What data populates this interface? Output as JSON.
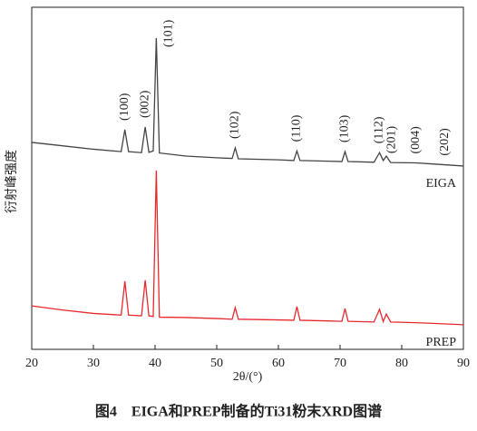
{
  "chart_data": {
    "type": "line",
    "y_label": "衍射峰强度",
    "x_label": "2θ/(°)",
    "caption": "图4　EIGA和PREP制备的Ti31粉末XRD图谱",
    "xlim": [
      20,
      90
    ],
    "xticks": [
      20,
      30,
      40,
      50,
      60,
      70,
      80,
      90
    ],
    "ylim": [
      0,
      100
    ],
    "series": [
      {
        "name": "EIGA",
        "color": "#444444",
        "x": [
          20,
          25,
          30,
          34.5,
          35.1,
          35.7,
          37.8,
          38.4,
          39.0,
          39.7,
          40.2,
          40.7,
          45,
          50,
          52.5,
          53.0,
          53.5,
          60,
          62.5,
          63.0,
          63.5,
          68,
          70.3,
          70.8,
          71.3,
          75.5,
          76.4,
          77.0,
          77.5,
          78.2,
          82.3,
          85,
          90
        ],
        "values": [
          60.5,
          59.5,
          58.5,
          57.8,
          64.2,
          57.8,
          57.5,
          65,
          57.6,
          58,
          91,
          57.4,
          56.5,
          56,
          55.8,
          58.9,
          55.7,
          55.4,
          55.2,
          58,
          55.2,
          55,
          54.9,
          57.8,
          54.9,
          54.7,
          57.5,
          55.2,
          56.5,
          54.6,
          54.5,
          54.2,
          53.6
        ]
      },
      {
        "name": "PREP",
        "color": "#e8292e",
        "x": [
          20,
          25,
          30,
          34.5,
          35.1,
          35.7,
          37.8,
          38.4,
          39.0,
          39.7,
          40.2,
          40.7,
          45,
          50,
          52.5,
          53.0,
          53.5,
          60,
          62.5,
          63.0,
          63.5,
          68,
          70.3,
          70.8,
          71.3,
          75.5,
          76.4,
          77.0,
          77.5,
          78.2,
          82.3,
          85,
          90
        ],
        "values": [
          12.7,
          11.5,
          10.5,
          10,
          19.9,
          10,
          9.8,
          20.2,
          9.8,
          9.6,
          52.3,
          9.4,
          9.3,
          9,
          8.8,
          12.2,
          8.8,
          8.6,
          8.5,
          12.5,
          8.5,
          8.3,
          8.2,
          11.9,
          8.2,
          8,
          11.7,
          8.1,
          10.3,
          8,
          7.8,
          7.6,
          7.2
        ]
      }
    ],
    "peak_labels": [
      {
        "label": "(100)",
        "x": 35.1
      },
      {
        "label": "(002)",
        "x": 38.4
      },
      {
        "label": "(101)",
        "x": 40.2
      },
      {
        "label": "(102)",
        "x": 53.0
      },
      {
        "label": "(110)",
        "x": 63.0
      },
      {
        "label": "(103)",
        "x": 70.8
      },
      {
        "label": "(112)",
        "x": 76.4
      },
      {
        "label": "(201)",
        "x": 78.4
      },
      {
        "label": "(004)",
        "x": 82.3
      },
      {
        "label": "(202)",
        "x": 87.0
      }
    ]
  }
}
